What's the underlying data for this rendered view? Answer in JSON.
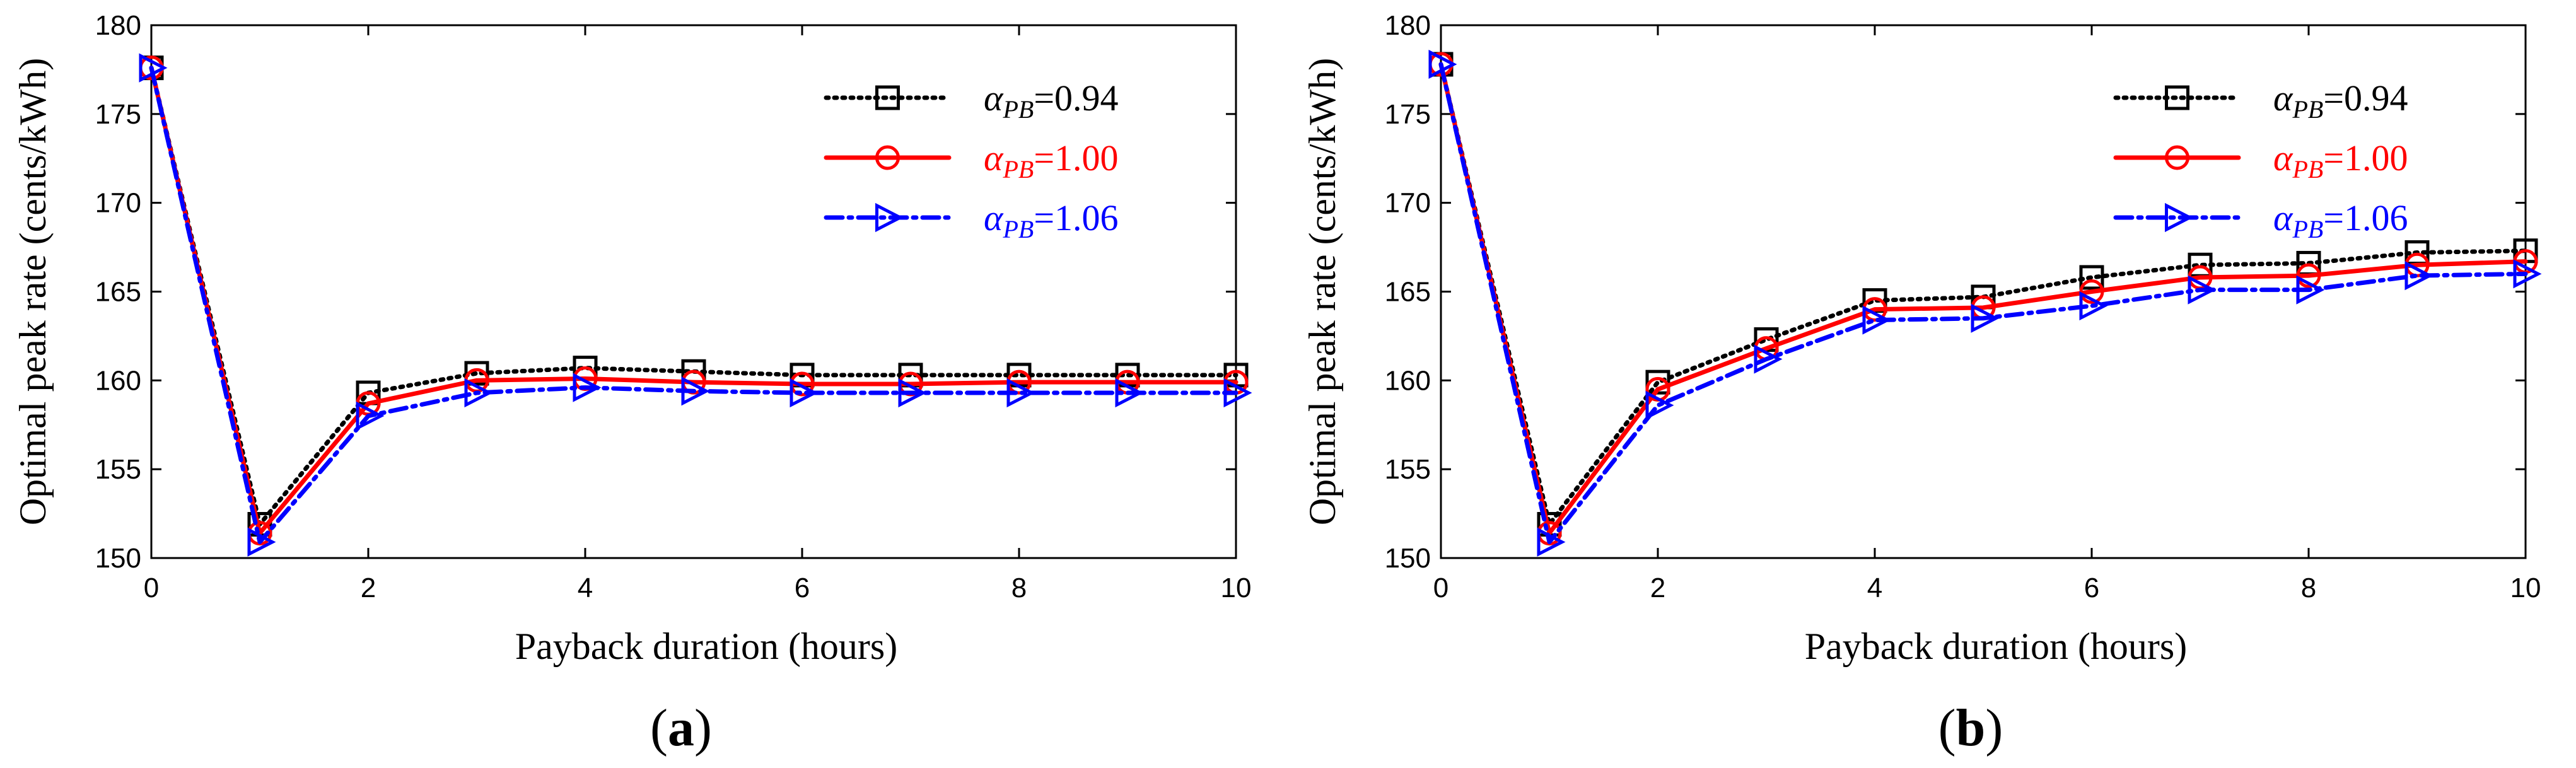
{
  "colors": {
    "black": "#000000",
    "red": "#ff0000",
    "blue": "#0000ff",
    "background": "#ffffff"
  },
  "chart_data": [
    {
      "type": "line",
      "panel_label": "(a)",
      "panel_letter": "a",
      "xlabel": "Payback duration (hours)",
      "ylabel": "Optimal peak rate (cents/kWh)",
      "xlim": [
        0,
        10
      ],
      "ylim": [
        150,
        180
      ],
      "xticks": [
        0,
        2,
        4,
        6,
        8,
        10
      ],
      "yticks": [
        150,
        155,
        160,
        165,
        170,
        175,
        180
      ],
      "grid": false,
      "legend_position": "top-right",
      "x": [
        0,
        1,
        2,
        3,
        4,
        5,
        6,
        7,
        8,
        9,
        10
      ],
      "series": [
        {
          "name": "αPB=0.94",
          "symbol": "α",
          "subscript": "PB",
          "value_text": "=0.94",
          "color": "#000000",
          "dash": "dotted",
          "marker": "square",
          "values": [
            177.6,
            151.9,
            159.3,
            160.4,
            160.7,
            160.5,
            160.3,
            160.3,
            160.3,
            160.3,
            160.3
          ]
        },
        {
          "name": "αPB=1.00",
          "symbol": "α",
          "subscript": "PB",
          "value_text": "=1.00",
          "color": "#ff0000",
          "dash": "solid",
          "marker": "circle",
          "values": [
            177.6,
            151.4,
            158.7,
            160.0,
            160.1,
            159.9,
            159.8,
            159.8,
            159.9,
            159.9,
            159.9
          ]
        },
        {
          "name": "αPB=1.06",
          "symbol": "α",
          "subscript": "PB",
          "value_text": "=1.06",
          "color": "#0000ff",
          "dash": "dashdot",
          "marker": "triangle-right",
          "values": [
            177.6,
            150.9,
            158.0,
            159.3,
            159.6,
            159.4,
            159.3,
            159.3,
            159.3,
            159.3,
            159.3
          ]
        }
      ]
    },
    {
      "type": "line",
      "panel_label": "(b)",
      "panel_letter": "b",
      "xlabel": "Payback duration (hours)",
      "ylabel": "Optimal peak rate (cents/kWh)",
      "xlim": [
        0,
        10
      ],
      "ylim": [
        150,
        180
      ],
      "xticks": [
        0,
        2,
        4,
        6,
        8,
        10
      ],
      "yticks": [
        150,
        155,
        160,
        165,
        170,
        175,
        180
      ],
      "grid": false,
      "legend_position": "top-right",
      "x": [
        0,
        1,
        2,
        3,
        4,
        5,
        6,
        7,
        8,
        9,
        10
      ],
      "series": [
        {
          "name": "αPB=0.94",
          "symbol": "α",
          "subscript": "PB",
          "value_text": "=0.94",
          "color": "#000000",
          "dash": "dotted",
          "marker": "square",
          "values": [
            177.8,
            151.9,
            159.9,
            162.3,
            164.5,
            164.7,
            165.8,
            166.5,
            166.6,
            167.2,
            167.3
          ]
        },
        {
          "name": "αPB=1.00",
          "symbol": "α",
          "subscript": "PB",
          "value_text": "=1.00",
          "color": "#ff0000",
          "dash": "solid",
          "marker": "circle",
          "values": [
            177.8,
            151.4,
            159.5,
            161.8,
            164.0,
            164.1,
            165.0,
            165.8,
            165.9,
            166.5,
            166.7
          ]
        },
        {
          "name": "αPB=1.06",
          "symbol": "α",
          "subscript": "PB",
          "value_text": "=1.06",
          "color": "#0000ff",
          "dash": "dashdot",
          "marker": "triangle-right",
          "values": [
            177.8,
            150.9,
            158.6,
            161.2,
            163.4,
            163.5,
            164.2,
            165.1,
            165.1,
            165.9,
            166.0
          ]
        }
      ]
    }
  ]
}
